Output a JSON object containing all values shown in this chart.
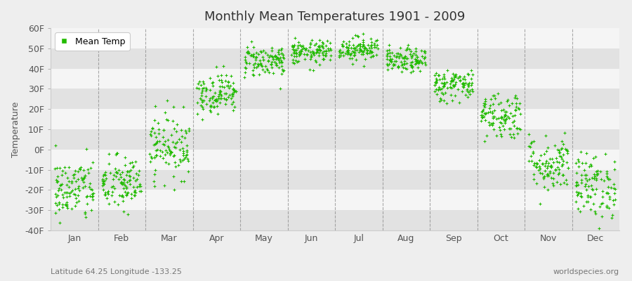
{
  "title": "Monthly Mean Temperatures 1901 - 2009",
  "ylabel": "Temperature",
  "month_labels": [
    "Jan",
    "Feb",
    "Mar",
    "Apr",
    "May",
    "Jun",
    "Jul",
    "Aug",
    "Sep",
    "Oct",
    "Nov",
    "Dec"
  ],
  "month_centers": [
    1,
    2,
    3,
    4,
    5,
    6,
    7,
    8,
    9,
    10,
    11,
    12
  ],
  "ylim": [
    -40,
    60
  ],
  "yticks": [
    -40,
    -30,
    -20,
    -10,
    0,
    10,
    20,
    30,
    40,
    50,
    60
  ],
  "ytick_labels": [
    "-40F",
    "-30F",
    "-20F",
    "-10F",
    "0F",
    "10F",
    "20F",
    "30F",
    "40F",
    "50F",
    "60F"
  ],
  "dot_color": "#22bb00",
  "dot_size": 10,
  "legend_label": "Mean Temp",
  "subtitle": "Latitude 64.25 Longitude -133.25",
  "watermark": "worldspecies.org",
  "background_color": "#eeeeee",
  "band_color_dark": "#e2e2e2",
  "band_color_light": "#f5f5f5",
  "grid_color": "#888888",
  "month_means": [
    -20,
    -17,
    2,
    28,
    44,
    48,
    50,
    44,
    32,
    17,
    -7,
    -18
  ],
  "month_stds": [
    8,
    7,
    8,
    5,
    4,
    3,
    3,
    3,
    4,
    6,
    7,
    8
  ],
  "n_years": 109,
  "title_fontsize": 13,
  "axis_fontsize": 9,
  "ylabel_fontsize": 9,
  "subtitle_fontsize": 8,
  "watermark_fontsize": 8
}
